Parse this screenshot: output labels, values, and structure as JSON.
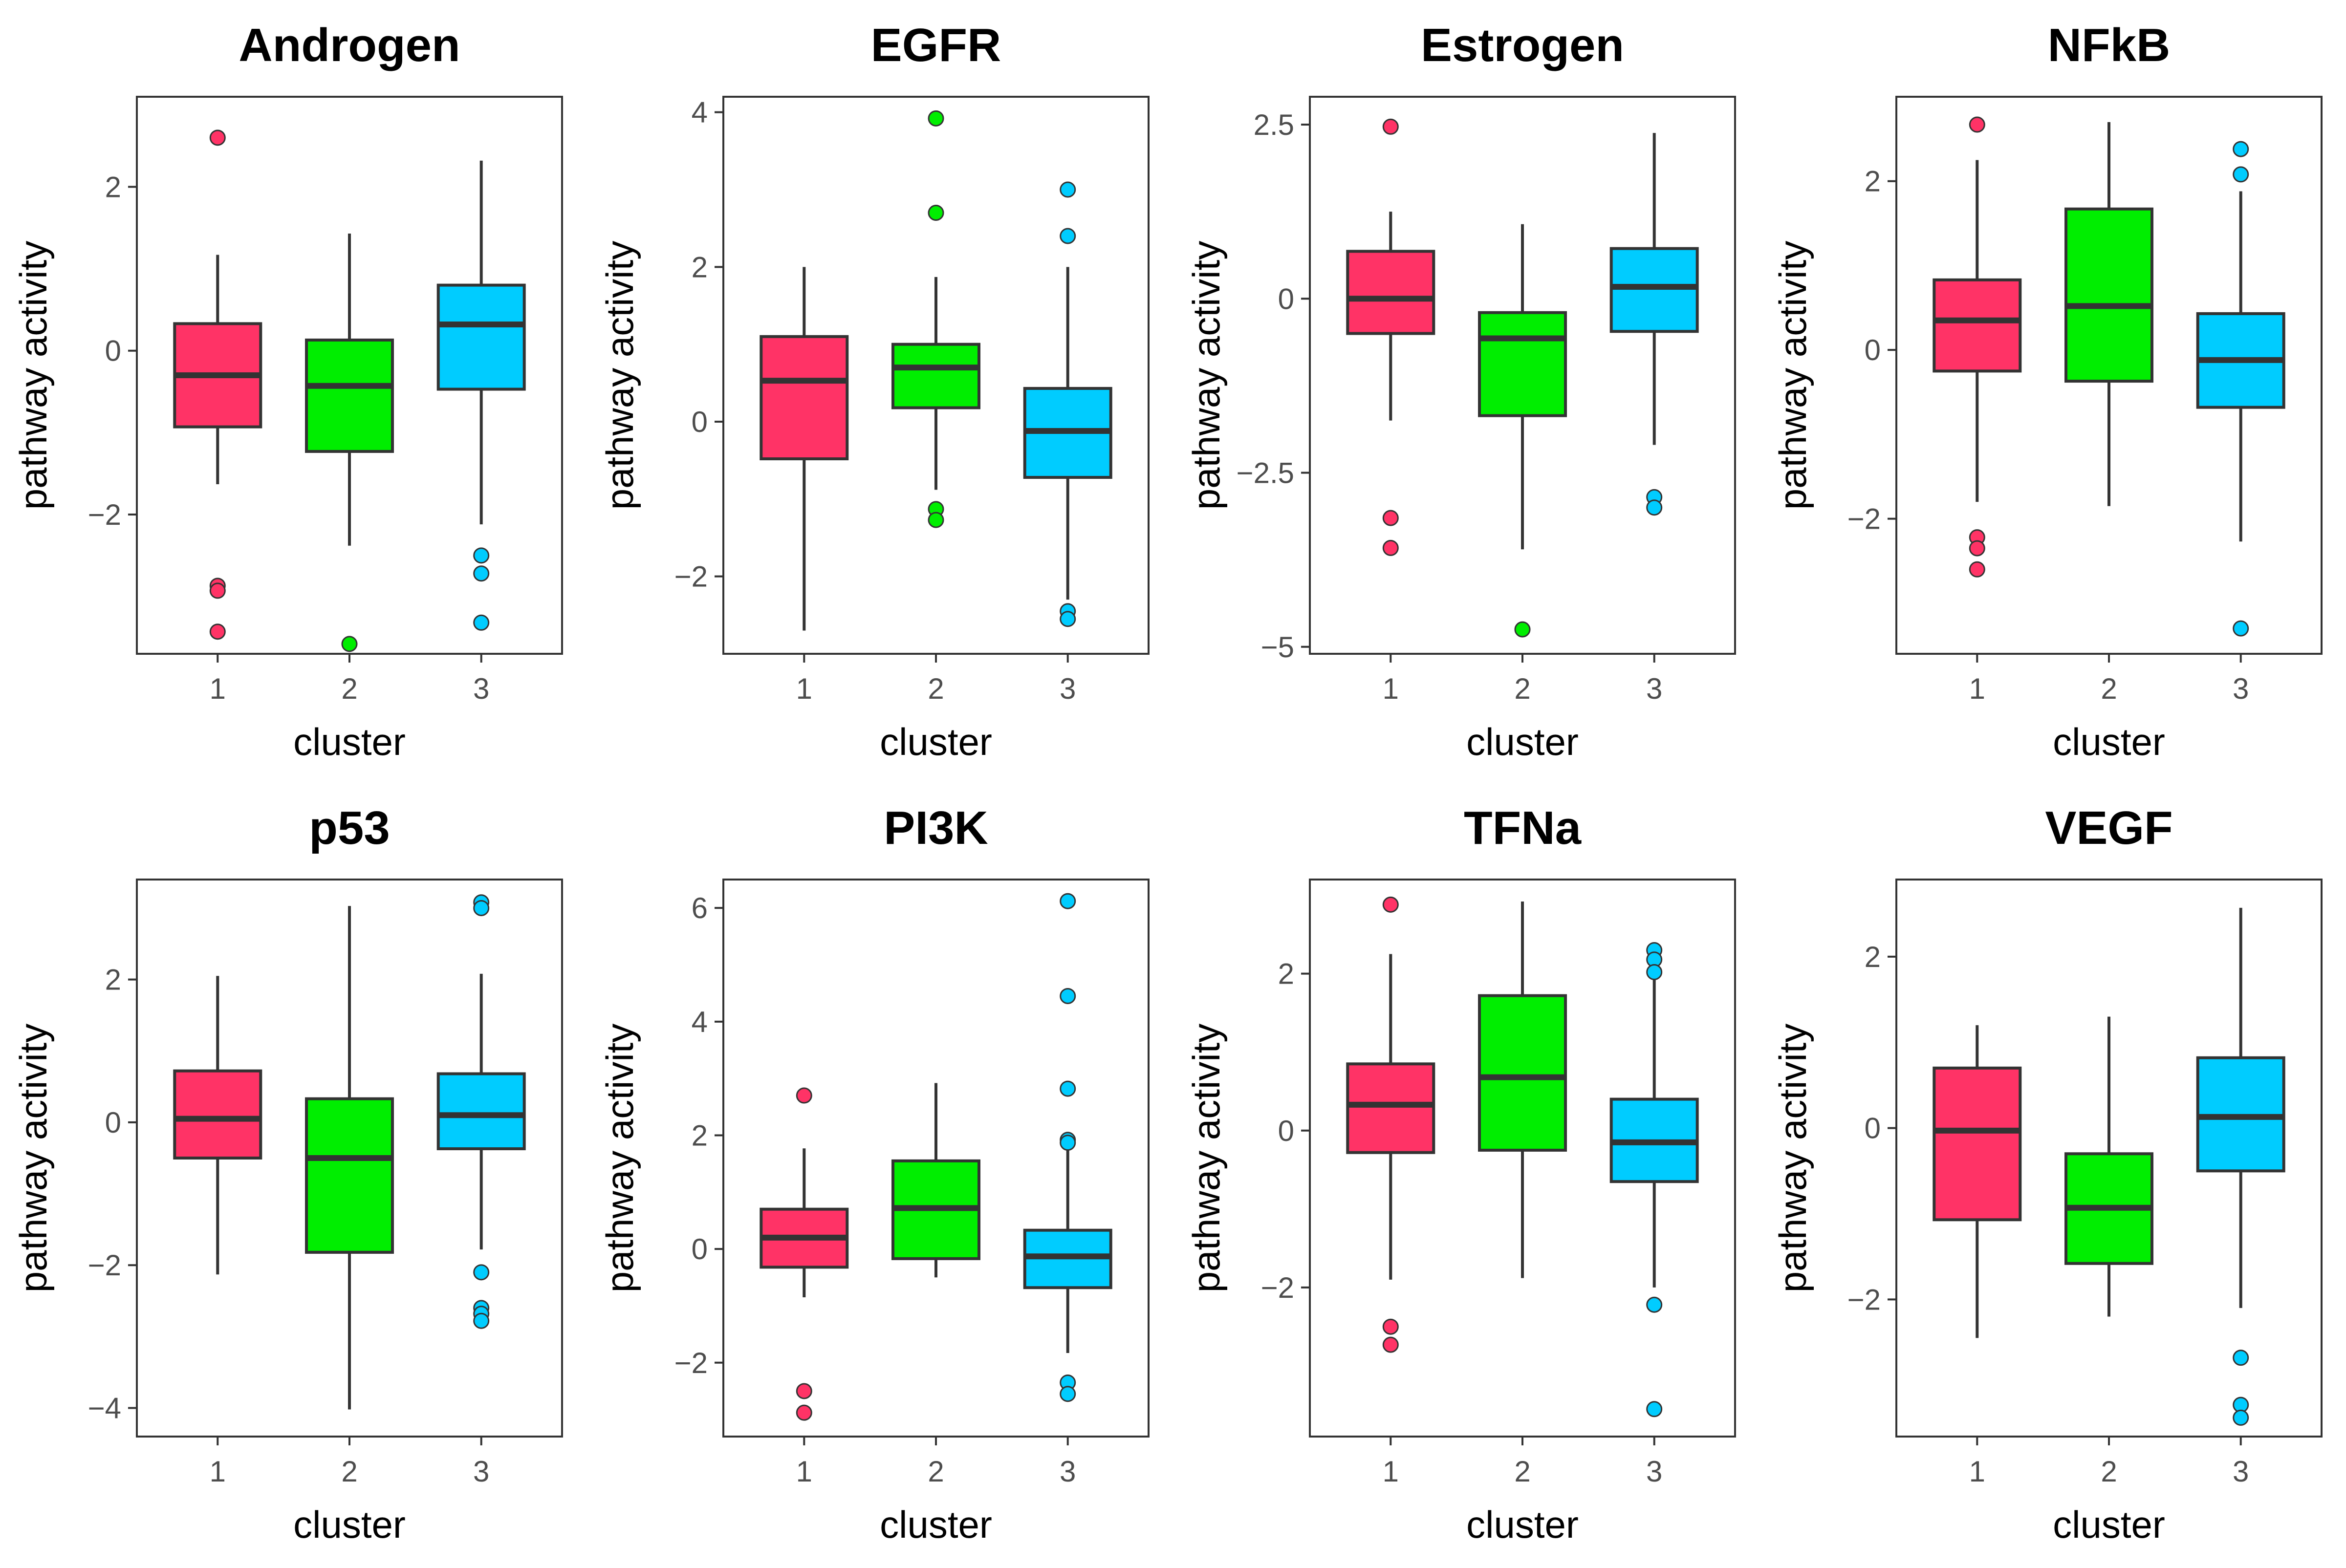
{
  "chart_data": [
    {
      "type": "box",
      "title": "Androgen",
      "xlabel": "cluster",
      "ylabel": "pathway activity",
      "categories": [
        "1",
        "2",
        "3"
      ],
      "ylim": [
        -3.7,
        3.1
      ],
      "yticks": [
        2,
        0,
        -2
      ],
      "ytick_labels": [
        "2",
        "0",
        "−2"
      ],
      "boxes": [
        {
          "cluster": "1",
          "low": -1.63,
          "q1": -0.93,
          "median": -0.3,
          "q3": 0.33,
          "high": 1.17,
          "outliers": [
            2.6,
            -2.87,
            -2.93,
            -3.43
          ]
        },
        {
          "cluster": "2",
          "low": -2.38,
          "q1": -1.23,
          "median": -0.43,
          "q3": 0.13,
          "high": 1.43,
          "outliers": [
            -3.58
          ]
        },
        {
          "cluster": "3",
          "low": -2.12,
          "q1": -0.47,
          "median": 0.32,
          "q3": 0.8,
          "high": 2.32,
          "outliers": [
            -2.5,
            -2.72,
            -3.32
          ]
        }
      ]
    },
    {
      "type": "box",
      "title": "EGFR",
      "xlabel": "cluster",
      "ylabel": "pathway activity",
      "categories": [
        "1",
        "2",
        "3"
      ],
      "ylim": [
        -3.0,
        4.2
      ],
      "yticks": [
        4,
        2,
        0,
        -2
      ],
      "ytick_labels": [
        "4",
        "2",
        "0",
        "−2"
      ],
      "boxes": [
        {
          "cluster": "1",
          "low": -2.7,
          "q1": -0.48,
          "median": 0.53,
          "q3": 1.1,
          "high": 2.0,
          "outliers": []
        },
        {
          "cluster": "2",
          "low": -0.88,
          "q1": 0.18,
          "median": 0.7,
          "q3": 1.0,
          "high": 1.87,
          "outliers": [
            3.92,
            2.7,
            -1.13,
            -1.27
          ]
        },
        {
          "cluster": "3",
          "low": -2.3,
          "q1": -0.72,
          "median": -0.12,
          "q3": 0.43,
          "high": 2.0,
          "outliers": [
            3.0,
            2.4,
            -2.45,
            -2.55
          ]
        }
      ]
    },
    {
      "type": "box",
      "title": "Estrogen",
      "xlabel": "cluster",
      "ylabel": "pathway activity",
      "categories": [
        "1",
        "2",
        "3"
      ],
      "ylim": [
        -5.1,
        2.9
      ],
      "yticks": [
        2.5,
        0,
        -2.5,
        -5
      ],
      "ytick_labels": [
        "2.5",
        "0",
        "−2.5",
        "−5"
      ],
      "boxes": [
        {
          "cluster": "1",
          "low": -1.75,
          "q1": -0.5,
          "median": 0.0,
          "q3": 0.68,
          "high": 1.25,
          "outliers": [
            2.47,
            -3.15,
            -3.58
          ]
        },
        {
          "cluster": "2",
          "low": -3.6,
          "q1": -1.68,
          "median": -0.57,
          "q3": -0.2,
          "high": 1.07,
          "outliers": [
            -4.75
          ]
        },
        {
          "cluster": "3",
          "low": -2.1,
          "q1": -0.47,
          "median": 0.17,
          "q3": 0.72,
          "high": 2.38,
          "outliers": [
            -2.85,
            -3.0
          ]
        }
      ]
    },
    {
      "type": "box",
      "title": "NFkB",
      "xlabel": "cluster",
      "ylabel": "pathway activity",
      "categories": [
        "1",
        "2",
        "3"
      ],
      "ylim": [
        -3.6,
        3.0
      ],
      "yticks": [
        2,
        0,
        -2
      ],
      "ytick_labels": [
        "2",
        "0",
        "−2"
      ],
      "boxes": [
        {
          "cluster": "1",
          "low": -1.8,
          "q1": -0.25,
          "median": 0.35,
          "q3": 0.83,
          "high": 2.25,
          "outliers": [
            2.67,
            -2.22,
            -2.35,
            -2.6
          ]
        },
        {
          "cluster": "2",
          "low": -1.85,
          "q1": -0.37,
          "median": 0.52,
          "q3": 1.67,
          "high": 2.7,
          "outliers": []
        },
        {
          "cluster": "3",
          "low": -2.27,
          "q1": -0.68,
          "median": -0.12,
          "q3": 0.43,
          "high": 1.88,
          "outliers": [
            2.38,
            2.08,
            -3.3
          ]
        }
      ]
    },
    {
      "type": "box",
      "title": "p53",
      "xlabel": "cluster",
      "ylabel": "pathway activity",
      "categories": [
        "1",
        "2",
        "3"
      ],
      "ylim": [
        -4.4,
        3.4
      ],
      "yticks": [
        2,
        0,
        -2,
        -4
      ],
      "ytick_labels": [
        "2",
        "0",
        "−2",
        "−4"
      ],
      "boxes": [
        {
          "cluster": "1",
          "low": -2.13,
          "q1": -0.5,
          "median": 0.05,
          "q3": 0.72,
          "high": 2.05,
          "outliers": []
        },
        {
          "cluster": "2",
          "low": -4.02,
          "q1": -1.82,
          "median": -0.5,
          "q3": 0.33,
          "high": 3.03,
          "outliers": []
        },
        {
          "cluster": "3",
          "low": -1.78,
          "q1": -0.37,
          "median": 0.1,
          "q3": 0.68,
          "high": 2.08,
          "outliers": [
            3.08,
            3.0,
            -2.1,
            -2.6,
            -2.68,
            -2.78
          ]
        }
      ]
    },
    {
      "type": "box",
      "title": "PI3K",
      "xlabel": "cluster",
      "ylabel": "pathway activity",
      "categories": [
        "1",
        "2",
        "3"
      ],
      "ylim": [
        -3.3,
        6.5
      ],
      "yticks": [
        6,
        4,
        2,
        0,
        -2
      ],
      "ytick_labels": [
        "6",
        "4",
        "2",
        "0",
        "−2"
      ],
      "boxes": [
        {
          "cluster": "1",
          "low": -0.85,
          "q1": -0.32,
          "median": 0.2,
          "q3": 0.7,
          "high": 1.77,
          "outliers": [
            2.7,
            -2.5,
            -2.88
          ]
        },
        {
          "cluster": "2",
          "low": -0.5,
          "q1": -0.17,
          "median": 0.72,
          "q3": 1.55,
          "high": 2.92,
          "outliers": []
        },
        {
          "cluster": "3",
          "low": -1.83,
          "q1": -0.68,
          "median": -0.13,
          "q3": 0.33,
          "high": 1.75,
          "outliers": [
            6.12,
            4.45,
            2.82,
            1.92,
            1.87,
            -2.35,
            -2.55
          ]
        }
      ]
    },
    {
      "type": "box",
      "title": "TFNa",
      "xlabel": "cluster",
      "ylabel": "pathway activity",
      "categories": [
        "1",
        "2",
        "3"
      ],
      "ylim": [
        -3.9,
        3.2
      ],
      "yticks": [
        2,
        0,
        -2
      ],
      "ytick_labels": [
        "2",
        "0",
        "−2"
      ],
      "boxes": [
        {
          "cluster": "1",
          "low": -1.9,
          "q1": -0.28,
          "median": 0.33,
          "q3": 0.85,
          "high": 2.25,
          "outliers": [
            2.88,
            -2.5,
            -2.73
          ]
        },
        {
          "cluster": "2",
          "low": -1.88,
          "q1": -0.25,
          "median": 0.68,
          "q3": 1.72,
          "high": 2.92,
          "outliers": []
        },
        {
          "cluster": "3",
          "low": -2.0,
          "q1": -0.65,
          "median": -0.15,
          "q3": 0.4,
          "high": 1.92,
          "outliers": [
            2.3,
            2.18,
            2.02,
            -2.22,
            -3.55
          ]
        }
      ]
    },
    {
      "type": "box",
      "title": "VEGF",
      "xlabel": "cluster",
      "ylabel": "pathway activity",
      "categories": [
        "1",
        "2",
        "3"
      ],
      "ylim": [
        -3.6,
        2.9
      ],
      "yticks": [
        2,
        0,
        -2
      ],
      "ytick_labels": [
        "2",
        "0",
        "−2"
      ],
      "boxes": [
        {
          "cluster": "1",
          "low": -2.45,
          "q1": -1.07,
          "median": -0.03,
          "q3": 0.7,
          "high": 1.2,
          "outliers": []
        },
        {
          "cluster": "2",
          "low": -2.2,
          "q1": -1.58,
          "median": -0.93,
          "q3": -0.3,
          "high": 1.3,
          "outliers": []
        },
        {
          "cluster": "3",
          "low": -2.1,
          "q1": -0.5,
          "median": 0.13,
          "q3": 0.82,
          "high": 2.57,
          "outliers": [
            -2.68,
            -3.23,
            -3.38
          ]
        }
      ]
    }
  ],
  "colors": {
    "cluster_1": "#ff3366",
    "cluster_2": "#00ee00",
    "cluster_3": "#00ccff",
    "axis": "#333333",
    "tick_text": "#4d4d4d"
  }
}
